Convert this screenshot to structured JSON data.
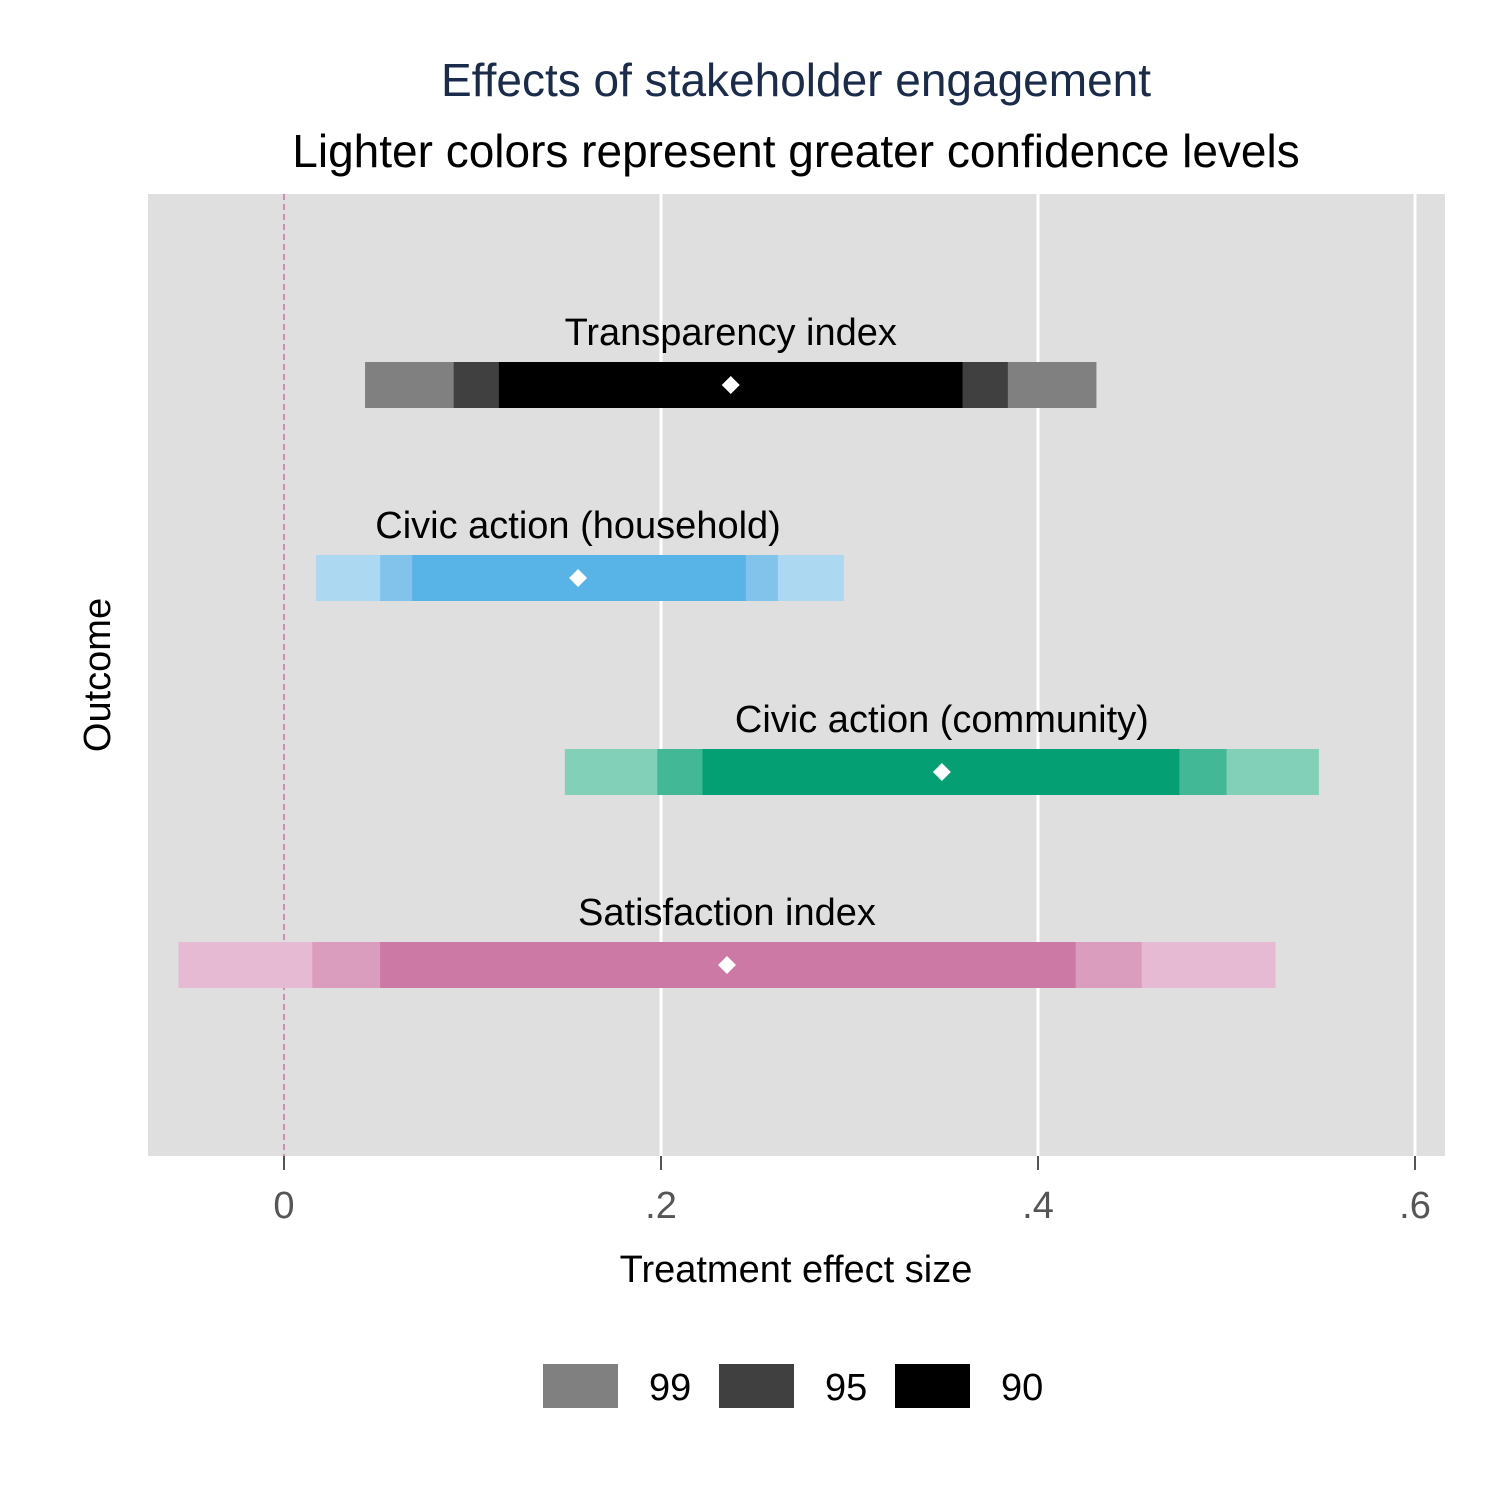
{
  "chart_data": {
    "type": "range_bar",
    "title": "Effects of stakeholder engagement",
    "subtitle": "Lighter colors represent greater confidence levels",
    "xlabel": "Treatment effect size",
    "ylabel": "Outcome",
    "xlim": [
      -0.073,
      0.617
    ],
    "x_ticks": [
      0,
      0.2,
      0.4,
      0.6
    ],
    "x_tick_labels": [
      "0",
      ".2",
      ".4",
      ".6"
    ],
    "reference_line": 0,
    "grid": true,
    "legend_position": "bottom",
    "legend": [
      {
        "label": "99",
        "color": "#808080"
      },
      {
        "label": "95",
        "color": "#404040"
      },
      {
        "label": "90",
        "color": "#000000"
      }
    ],
    "series": [
      {
        "name": "Transparency index",
        "estimate": 0.237,
        "ci99": [
          0.043,
          0.431
        ],
        "ci95": [
          0.09,
          0.384
        ],
        "ci90": [
          0.114,
          0.36
        ],
        "colors": {
          "ci99": "#808080",
          "ci95": "#404040",
          "ci90": "#000000"
        }
      },
      {
        "name": "Civic action (household)",
        "estimate": 0.156,
        "ci99": [
          0.017,
          0.297
        ],
        "ci95": [
          0.051,
          0.262
        ],
        "ci90": [
          0.068,
          0.245
        ],
        "colors": {
          "ci99": "#acd8f2",
          "ci95": "#82c3ec",
          "ci90": "#58b3e6"
        }
      },
      {
        "name": "Civic action (community)",
        "estimate": 0.349,
        "ci99": [
          0.149,
          0.549
        ],
        "ci95": [
          0.198,
          0.5
        ],
        "ci90": [
          0.222,
          0.475
        ],
        "colors": {
          "ci99": "#82d0b7",
          "ci95": "#42b896",
          "ci90": "#04a073"
        }
      },
      {
        "name": "Satisfaction index",
        "estimate": 0.235,
        "ci99": [
          -0.056,
          0.526
        ],
        "ci95": [
          0.015,
          0.455
        ],
        "ci90": [
          0.051,
          0.42
        ],
        "colors": {
          "ci99": "#e5bad2",
          "ci95": "#da9dbd",
          "ci90": "#cd79a5"
        }
      }
    ]
  }
}
